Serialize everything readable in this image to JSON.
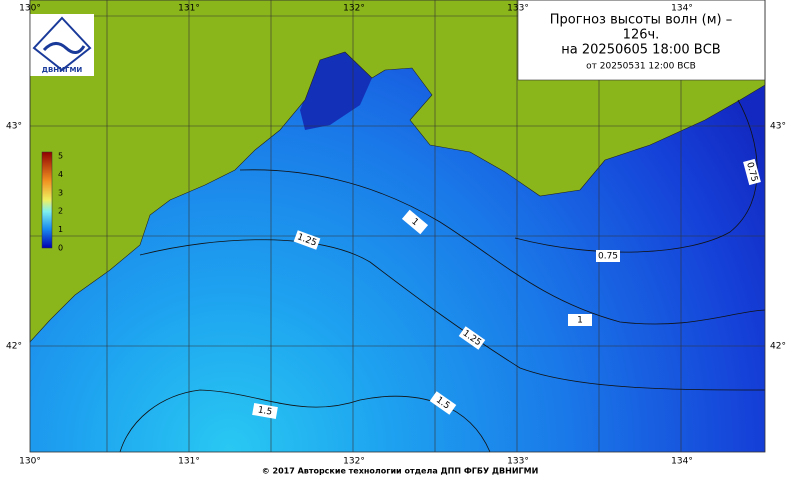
{
  "title": {
    "line1": "Прогноз высоты волн (м) –",
    "line2": "126ч.",
    "line3": "на 20250605 18:00 ВСВ",
    "line4": "от 20250531 12:00 ВСВ"
  },
  "logo": {
    "label": "ДВНИГМИ"
  },
  "longitudes": [
    "130°",
    "131°",
    "132°",
    "133°",
    "134°"
  ],
  "latitudes": [
    "43°",
    "42°"
  ],
  "colorbar": {
    "labels": [
      "5",
      "4",
      "3",
      "2",
      "1",
      "0"
    ]
  },
  "contours": [
    0.75,
    0.75,
    1,
    1,
    1.25,
    1.25,
    1.5,
    1.5
  ],
  "footer": "© 2017 Авторские технологии отдела ДПП ФГБУ ДВНИГМИ"
}
